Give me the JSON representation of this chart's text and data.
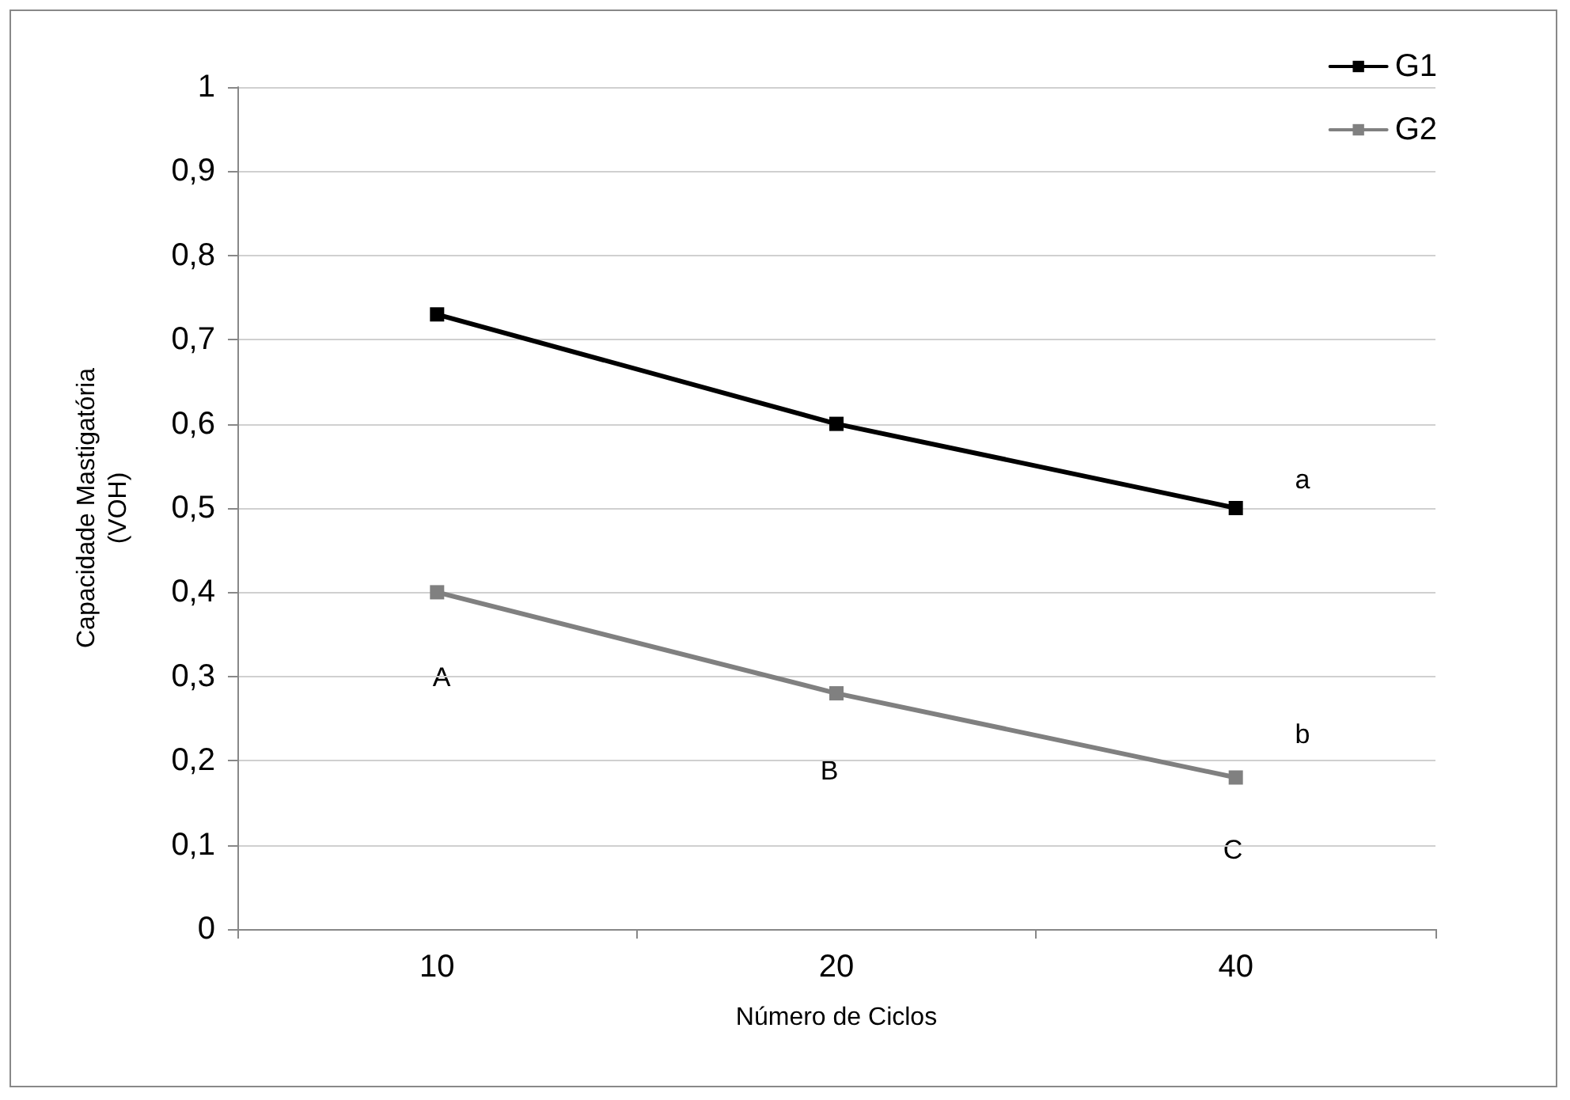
{
  "chart_data": {
    "type": "line",
    "xlabel": "Número de Ciclos",
    "ylabel": "Capacidade Mastigatória\n(VOH)",
    "categories": [
      "10",
      "20",
      "40"
    ],
    "series": [
      {
        "name": "G1",
        "color": "#000000",
        "values": [
          0.73,
          0.6,
          0.5
        ]
      },
      {
        "name": "G2",
        "color": "#808080",
        "values": [
          0.4,
          0.28,
          0.18
        ]
      }
    ],
    "ylim": [
      0,
      1
    ],
    "yticks": [
      0,
      {
        "value": 0.1,
        "label": "0,1"
      },
      {
        "value": 0.2,
        "label": "0,2"
      },
      {
        "value": 0.3,
        "label": "0,3"
      },
      {
        "value": 0.4,
        "label": "0,4"
      },
      {
        "value": 0.5,
        "label": "0,5"
      },
      {
        "value": 0.6,
        "label": "0,6"
      },
      {
        "value": 0.7,
        "label": "0,7"
      },
      {
        "value": 0.8,
        "label": "0,8"
      },
      {
        "value": 0.9,
        "label": "0,9"
      },
      1
    ],
    "annotations": [
      "a",
      "b",
      "A",
      "B",
      "C"
    ],
    "grid": "y",
    "legend": "top right",
    "marker": "square",
    "line_style": "solid"
  }
}
